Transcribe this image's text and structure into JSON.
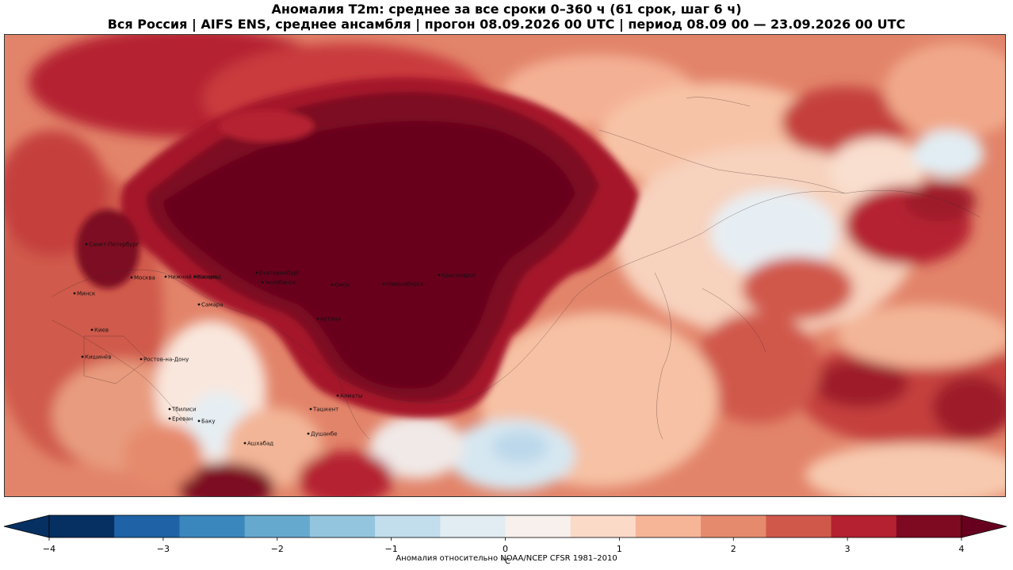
{
  "title_line1": "Аномалия T2m: среднее за все сроки 0–360 ч (61 срок, шаг 6 ч)",
  "title_line2": "Вся Россия | AIFS ENS, среднее ансамбля | прогон 08.09.2026 00 UTC | период 08.09 00 — 23.09.2026 00 UTC",
  "cities": [
    {
      "name": "Санкт-Петербург"
    },
    {
      "name": "Москва"
    },
    {
      "name": "Нижний Новгород"
    },
    {
      "name": "Казань"
    },
    {
      "name": "Минск"
    },
    {
      "name": "Самара"
    },
    {
      "name": "Киев"
    },
    {
      "name": "Кишинёв"
    },
    {
      "name": "Ростов-на-Дону"
    },
    {
      "name": "Тбилиси"
    },
    {
      "name": "Ереван"
    },
    {
      "name": "Баку"
    },
    {
      "name": "Ашхабад"
    },
    {
      "name": "Ташкент"
    },
    {
      "name": "Душанбе"
    },
    {
      "name": "Екатеринбург"
    },
    {
      "name": "Челябинск"
    },
    {
      "name": "Омск"
    },
    {
      "name": "Новосибирск"
    },
    {
      "name": "Красноярск"
    },
    {
      "name": "Астана"
    },
    {
      "name": "Алматы"
    }
  ],
  "colorbar": {
    "colors": [
      "#053061",
      "#1f63a6",
      "#3a87bd",
      "#66a9cf",
      "#93c5de",
      "#c2ddec",
      "#e1edf3",
      "#f8f0ec",
      "#fbdac8",
      "#f6b596",
      "#e68a6d",
      "#d0584b",
      "#b52130",
      "#7d0a21"
    ],
    "under_color": "#053061",
    "over_color": "#67001f",
    "min": -4,
    "max": 4,
    "ticks": [
      -4,
      -3,
      -2,
      -1,
      0,
      1,
      2,
      3,
      4
    ],
    "tick_labels": [
      "−4",
      "−3",
      "−2",
      "−1",
      "0",
      "1",
      "2",
      "3",
      "4"
    ]
  },
  "footnote": "Аномалия относительно NOAA/NCEP CFSR 1981–2010",
  "unit": "°C"
}
